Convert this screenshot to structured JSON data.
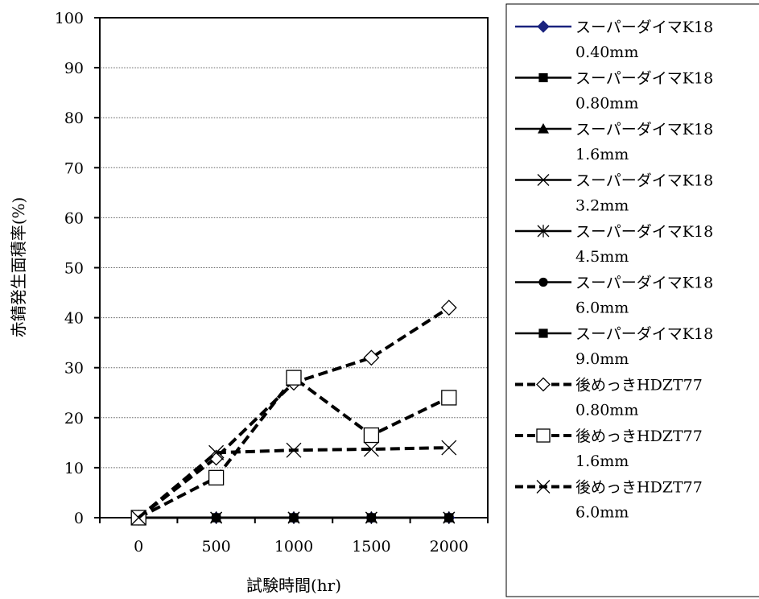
{
  "chart_data": {
    "type": "line",
    "xlabel": "試験時間(hr)",
    "ylabel": "赤錆発生面積率(%)",
    "categories": [
      "0",
      "500",
      "1000",
      "1500",
      "2000"
    ],
    "ylim": [
      0,
      100
    ],
    "yticks": [
      "0",
      "10",
      "20",
      "30",
      "40",
      "50",
      "60",
      "70",
      "80",
      "90",
      "100"
    ],
    "grid": "horizontal",
    "legend_position": "right",
    "series": [
      {
        "name": "スーパーダイマK18",
        "sub": "0.40mm",
        "marker": "diamond-filled",
        "style": "solid",
        "color": "#1a237e",
        "values": [
          0,
          0,
          0,
          0,
          0
        ]
      },
      {
        "name": "スーパーダイマK18",
        "sub": "0.80mm",
        "marker": "square-filled",
        "style": "solid",
        "color": "#000000",
        "values": [
          0,
          0,
          0,
          0,
          0
        ]
      },
      {
        "name": "スーパーダイマK18",
        "sub": "1.6mm",
        "marker": "triangle-filled",
        "style": "solid",
        "color": "#000000",
        "values": [
          0,
          0,
          0,
          0,
          0
        ]
      },
      {
        "name": "スーパーダイマK18",
        "sub": "3.2mm",
        "marker": "x",
        "style": "solid",
        "color": "#000000",
        "values": [
          0,
          0,
          0,
          0,
          0
        ]
      },
      {
        "name": "スーパーダイマK18",
        "sub": "4.5mm",
        "marker": "star",
        "style": "solid",
        "color": "#000000",
        "values": [
          0,
          0,
          0,
          0,
          0
        ]
      },
      {
        "name": "スーパーダイマK18",
        "sub": "6.0mm",
        "marker": "circle-filled",
        "style": "solid",
        "color": "#000000",
        "values": [
          0,
          0,
          0,
          0,
          0
        ]
      },
      {
        "name": "スーパーダイマK18",
        "sub": "9.0mm",
        "marker": "square-filled",
        "style": "solid",
        "color": "#000000",
        "values": [
          0,
          0,
          0,
          0,
          0
        ]
      },
      {
        "name": "後めっきHDZT77",
        "sub": "0.80mm",
        "marker": "diamond-open",
        "style": "dashed",
        "color": "#000000",
        "values": [
          0,
          12,
          27,
          32,
          42
        ]
      },
      {
        "name": "後めっきHDZT77",
        "sub": "1.6mm",
        "marker": "square-open",
        "style": "dashed",
        "color": "#000000",
        "values": [
          0,
          8,
          28,
          16.5,
          24
        ]
      },
      {
        "name": "後めっきHDZT77",
        "sub": "6.0mm",
        "marker": "x",
        "style": "dashed",
        "color": "#000000",
        "values": [
          0,
          13,
          13.5,
          13.7,
          14
        ]
      }
    ]
  }
}
